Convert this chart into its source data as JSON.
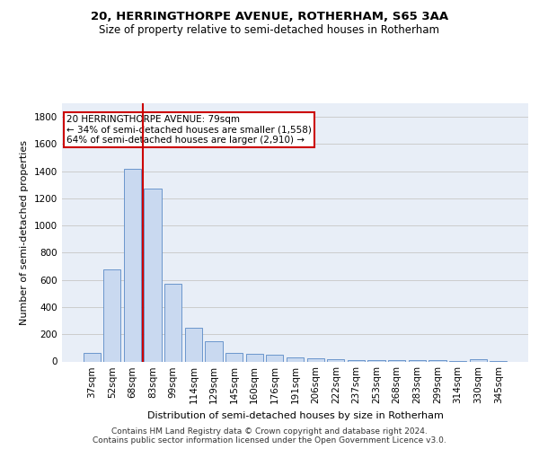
{
  "title1": "20, HERRINGTHORPE AVENUE, ROTHERHAM, S65 3AA",
  "title2": "Size of property relative to semi-detached houses in Rotherham",
  "xlabel": "Distribution of semi-detached houses by size in Rotherham",
  "ylabel": "Number of semi-detached properties",
  "categories": [
    "37sqm",
    "52sqm",
    "68sqm",
    "83sqm",
    "99sqm",
    "114sqm",
    "129sqm",
    "145sqm",
    "160sqm",
    "176sqm",
    "191sqm",
    "206sqm",
    "222sqm",
    "237sqm",
    "253sqm",
    "268sqm",
    "283sqm",
    "299sqm",
    "314sqm",
    "330sqm",
    "345sqm"
  ],
  "values": [
    62,
    675,
    1420,
    1270,
    570,
    250,
    150,
    62,
    58,
    50,
    30,
    22,
    15,
    13,
    12,
    10,
    8,
    8,
    2,
    15,
    2
  ],
  "bar_color": "#c9d9f0",
  "bar_edge_color": "#5a8ac6",
  "property_bin_index": 2,
  "property_line_color": "#cc0000",
  "annotation_text": "20 HERRINGTHORPE AVENUE: 79sqm\n← 34% of semi-detached houses are smaller (1,558)\n64% of semi-detached houses are larger (2,910) →",
  "annotation_box_color": "#cc0000",
  "ylim": [
    0,
    1900
  ],
  "yticks": [
    0,
    200,
    400,
    600,
    800,
    1000,
    1200,
    1400,
    1600,
    1800
  ],
  "grid_color": "#cccccc",
  "bg_color": "#e8eef7",
  "footer": "Contains HM Land Registry data © Crown copyright and database right 2024.\nContains public sector information licensed under the Open Government Licence v3.0.",
  "title1_fontsize": 9.5,
  "title2_fontsize": 8.5,
  "xlabel_fontsize": 8,
  "ylabel_fontsize": 8,
  "footer_fontsize": 6.5,
  "tick_fontsize": 7.5,
  "annot_fontsize": 7.5
}
